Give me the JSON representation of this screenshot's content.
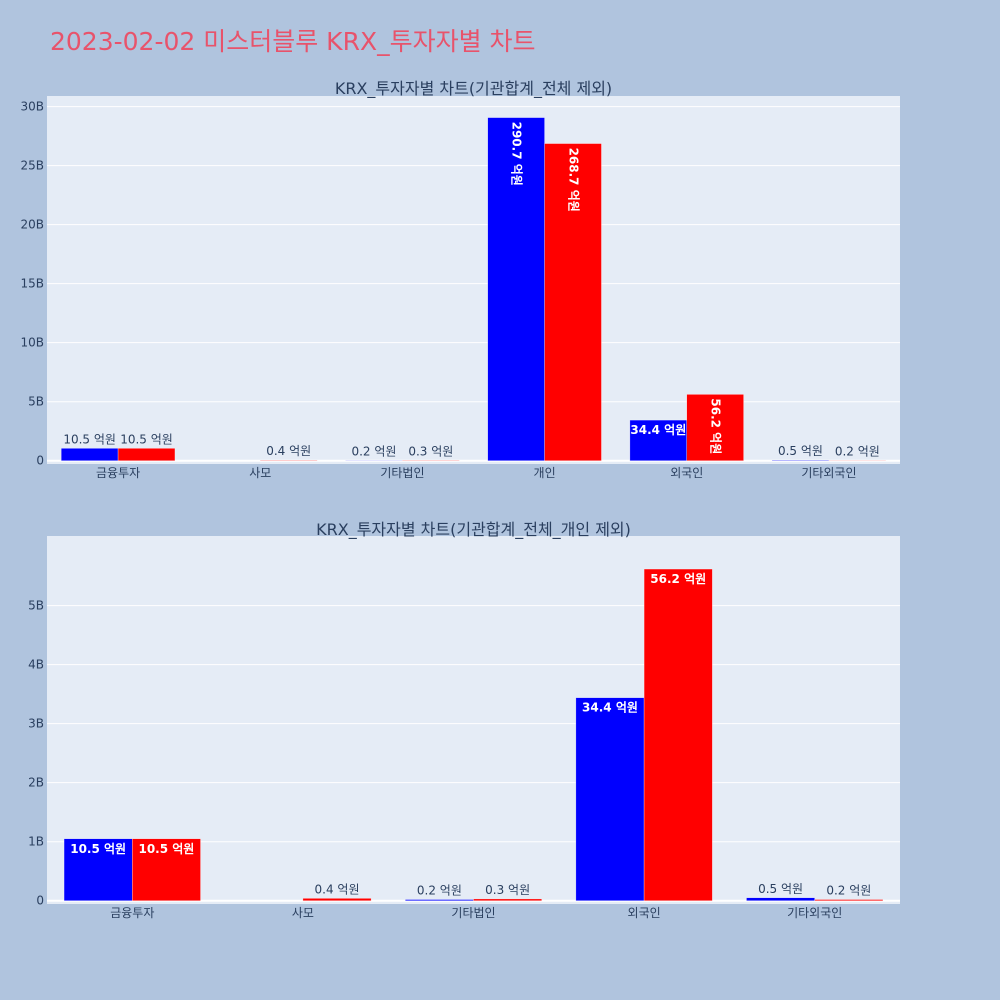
{
  "page_title": "2023-02-02 미스터블루 KRX_투자자별 차트",
  "colors": {
    "background": "#b0c4de",
    "plot_bg": "#e5ecf6",
    "buy": "#0000ff",
    "sell": "#ff0000",
    "title": "#e8536b",
    "text": "#2a3f5f"
  },
  "chart_data": [
    {
      "type": "bar",
      "title": "KRX_투자자별 차트(기관합계_전체 제외)",
      "categories": [
        "금융투자",
        "사모",
        "기타법인",
        "개인",
        "외국인",
        "기타외국인"
      ],
      "ylim": [
        0,
        30
      ],
      "yticks": [
        0,
        5,
        10,
        15,
        20,
        25,
        30
      ],
      "ytick_labels": [
        "0",
        "5B",
        "10B",
        "15B",
        "20B",
        "25B",
        "30B"
      ],
      "grid": true,
      "series": [
        {
          "color": "#0000ff",
          "values": [
            1.05,
            0.0,
            0.02,
            29.07,
            3.44,
            0.05
          ],
          "labels": [
            "10.5 억원",
            "",
            "0.2 억원",
            "290.7 억원",
            "34.4 억원",
            "0.5 억원"
          ]
        },
        {
          "color": "#ff0000",
          "values": [
            1.05,
            0.04,
            0.03,
            26.87,
            5.62,
            0.02
          ],
          "labels": [
            "10.5 억원",
            "0.4 억원",
            "0.3 억원",
            "268.7 억원",
            "56.2 억원",
            "0.2 억원"
          ]
        }
      ]
    },
    {
      "type": "bar",
      "title": "KRX_투자자별 차트(기관합계_전체_개인 제외)",
      "categories": [
        "금융투자",
        "사모",
        "기타법인",
        "외국인",
        "기타외국인"
      ],
      "ylim": [
        0,
        6
      ],
      "yticks": [
        0,
        1,
        2,
        3,
        4,
        5
      ],
      "ytick_labels": [
        "0",
        "1B",
        "2B",
        "3B",
        "4B",
        "5B"
      ],
      "grid": true,
      "series": [
        {
          "color": "#0000ff",
          "values": [
            1.05,
            0.0,
            0.02,
            3.44,
            0.05
          ],
          "labels": [
            "10.5 억원",
            "",
            "0.2 억원",
            "34.4 억원",
            "0.5 억원"
          ]
        },
        {
          "color": "#ff0000",
          "values": [
            1.05,
            0.04,
            0.03,
            5.62,
            0.02
          ],
          "labels": [
            "10.5 억원",
            "0.4 억원",
            "0.3 억원",
            "56.2 억원",
            "0.2 억원"
          ]
        }
      ]
    }
  ]
}
